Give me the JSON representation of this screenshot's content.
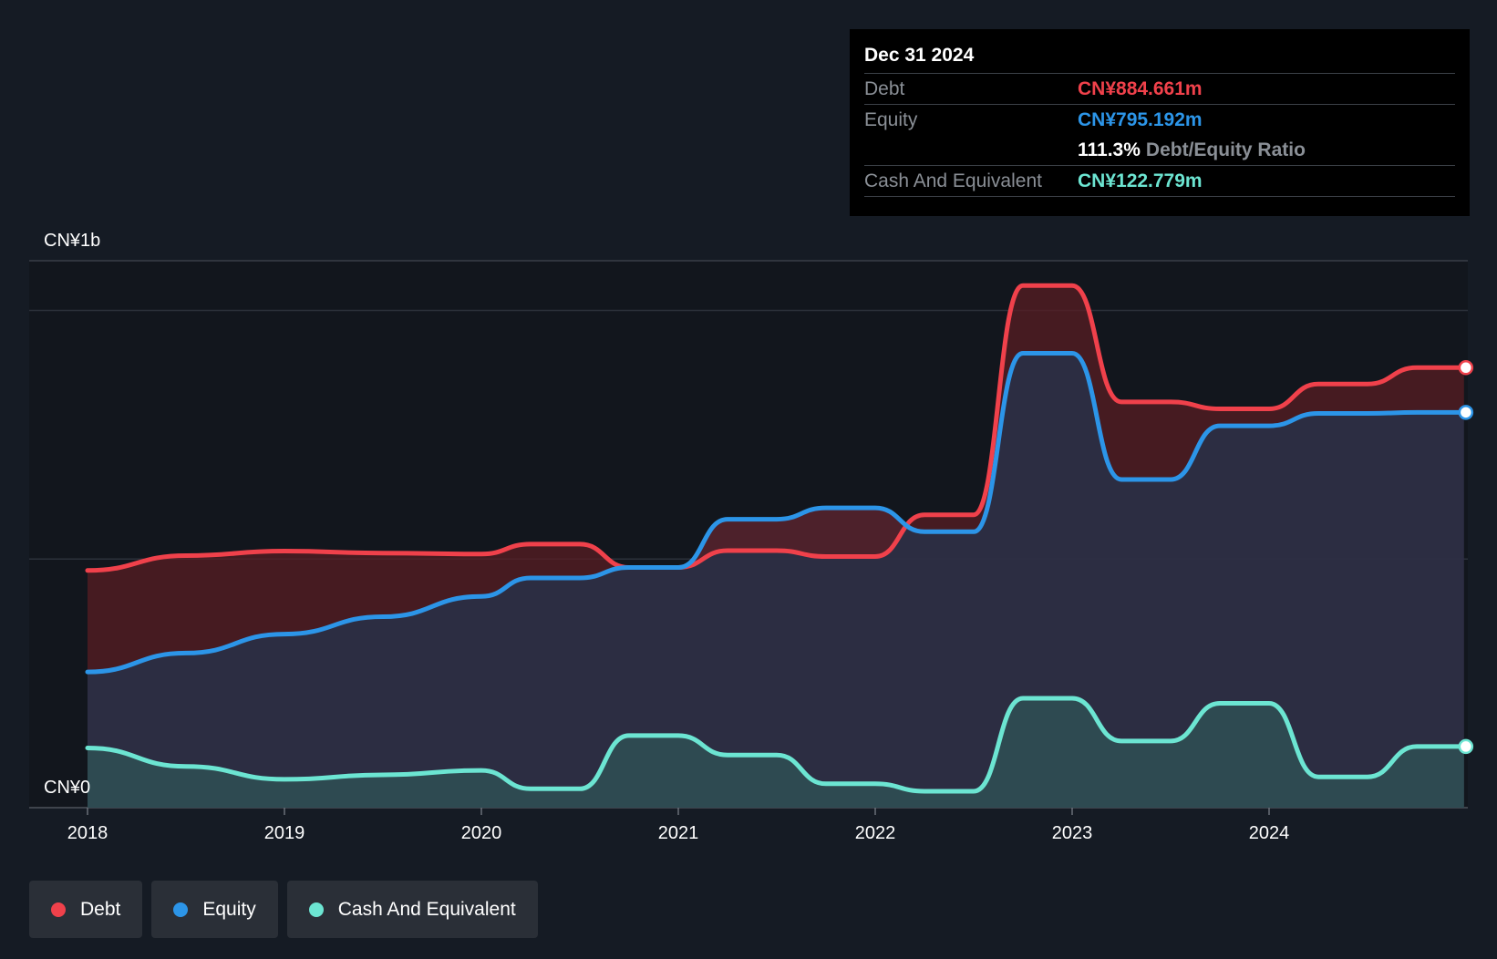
{
  "chart_data": {
    "type": "area",
    "y_axis_labels": {
      "top": "CN¥1b",
      "bottom": "CN¥0"
    },
    "ylim": [
      0,
      1100
    ],
    "x_ticks": [
      "2018",
      "2019",
      "2020",
      "2021",
      "2022",
      "2023",
      "2024"
    ],
    "grid": true,
    "series": [
      {
        "name": "Debt",
        "color": "#f0414b",
        "points": [
          [
            2018.0,
            477
          ],
          [
            2018.5,
            507
          ],
          [
            2019.0,
            516
          ],
          [
            2019.5,
            512
          ],
          [
            2020.0,
            510
          ],
          [
            2020.25,
            530
          ],
          [
            2020.5,
            530
          ],
          [
            2020.75,
            483
          ],
          [
            2021.0,
            483
          ],
          [
            2021.25,
            517
          ],
          [
            2021.5,
            517
          ],
          [
            2021.75,
            505
          ],
          [
            2022.0,
            505
          ],
          [
            2022.25,
            589
          ],
          [
            2022.5,
            589
          ],
          [
            2022.75,
            1050
          ],
          [
            2023.0,
            1050
          ],
          [
            2023.25,
            816
          ],
          [
            2023.5,
            816
          ],
          [
            2023.75,
            802
          ],
          [
            2024.0,
            802
          ],
          [
            2024.25,
            852
          ],
          [
            2024.5,
            852
          ],
          [
            2024.75,
            885
          ],
          [
            2024.99,
            885
          ]
        ]
      },
      {
        "name": "Equity",
        "color": "#2c95e8",
        "points": [
          [
            2018.0,
            273
          ],
          [
            2018.5,
            311
          ],
          [
            2019.0,
            349
          ],
          [
            2019.5,
            384
          ],
          [
            2020.0,
            425
          ],
          [
            2020.25,
            462
          ],
          [
            2020.5,
            462
          ],
          [
            2020.75,
            483
          ],
          [
            2021.0,
            483
          ],
          [
            2021.25,
            580
          ],
          [
            2021.5,
            580
          ],
          [
            2021.75,
            603
          ],
          [
            2022.0,
            603
          ],
          [
            2022.25,
            555
          ],
          [
            2022.5,
            555
          ],
          [
            2022.75,
            914
          ],
          [
            2023.0,
            914
          ],
          [
            2023.25,
            660
          ],
          [
            2023.5,
            660
          ],
          [
            2023.75,
            768
          ],
          [
            2024.0,
            768
          ],
          [
            2024.25,
            793
          ],
          [
            2024.5,
            793
          ],
          [
            2024.75,
            795
          ],
          [
            2024.99,
            795
          ]
        ]
      },
      {
        "name": "Cash And Equivalent",
        "color": "#6ce5d2",
        "points": [
          [
            2018.0,
            120
          ],
          [
            2018.5,
            83
          ],
          [
            2019.0,
            57
          ],
          [
            2019.5,
            66
          ],
          [
            2020.0,
            75
          ],
          [
            2020.25,
            38
          ],
          [
            2020.5,
            38
          ],
          [
            2020.75,
            145
          ],
          [
            2021.0,
            145
          ],
          [
            2021.25,
            106
          ],
          [
            2021.5,
            106
          ],
          [
            2021.75,
            48
          ],
          [
            2022.0,
            48
          ],
          [
            2022.25,
            33
          ],
          [
            2022.5,
            33
          ],
          [
            2022.75,
            220
          ],
          [
            2023.0,
            220
          ],
          [
            2023.25,
            134
          ],
          [
            2023.5,
            134
          ],
          [
            2023.75,
            210
          ],
          [
            2024.0,
            210
          ],
          [
            2024.25,
            62
          ],
          [
            2024.5,
            62
          ],
          [
            2024.75,
            123
          ],
          [
            2024.99,
            123
          ]
        ]
      }
    ],
    "tooltip": {
      "date": "Dec 31 2024",
      "debt_label": "Debt",
      "debt_value": "CN¥884.661m",
      "equity_label": "Equity",
      "equity_value": "CN¥795.192m",
      "ratio_value": "111.3%",
      "ratio_label": "Debt/Equity Ratio",
      "cash_label": "Cash And Equivalent",
      "cash_value": "CN¥122.779m"
    }
  },
  "legend": [
    {
      "label": "Debt",
      "color": "#f0414b"
    },
    {
      "label": "Equity",
      "color": "#2c95e8"
    },
    {
      "label": "Cash And Equivalent",
      "color": "#6ce5d2"
    }
  ]
}
